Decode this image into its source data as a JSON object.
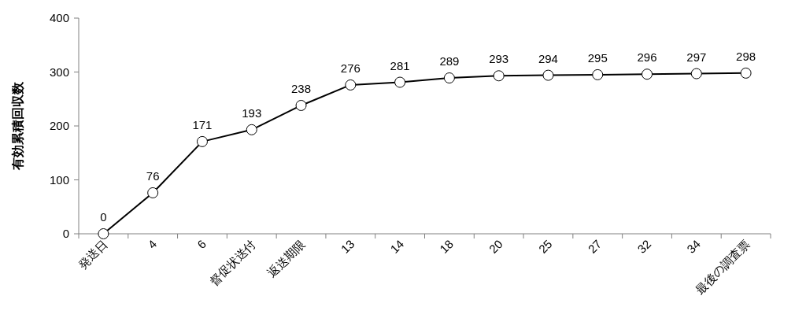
{
  "chart_data": {
    "type": "line",
    "ylabel": "有効累積回収数",
    "categories": [
      "発送日",
      "4",
      "6",
      "督促状送付",
      "返送期限",
      "13",
      "14",
      "18",
      "20",
      "25",
      "27",
      "32",
      "34",
      "最後の調査票"
    ],
    "series": [
      {
        "color": "#000000",
        "values": [
          0,
          76,
          171,
          193,
          238,
          276,
          281,
          289,
          293,
          294,
          295,
          296,
          297,
          298
        ]
      }
    ],
    "ylim": [
      0,
      400
    ],
    "yticks": [
      0,
      100,
      200,
      300,
      400
    ],
    "marker": "circle",
    "data_labels": true,
    "grid": false
  }
}
